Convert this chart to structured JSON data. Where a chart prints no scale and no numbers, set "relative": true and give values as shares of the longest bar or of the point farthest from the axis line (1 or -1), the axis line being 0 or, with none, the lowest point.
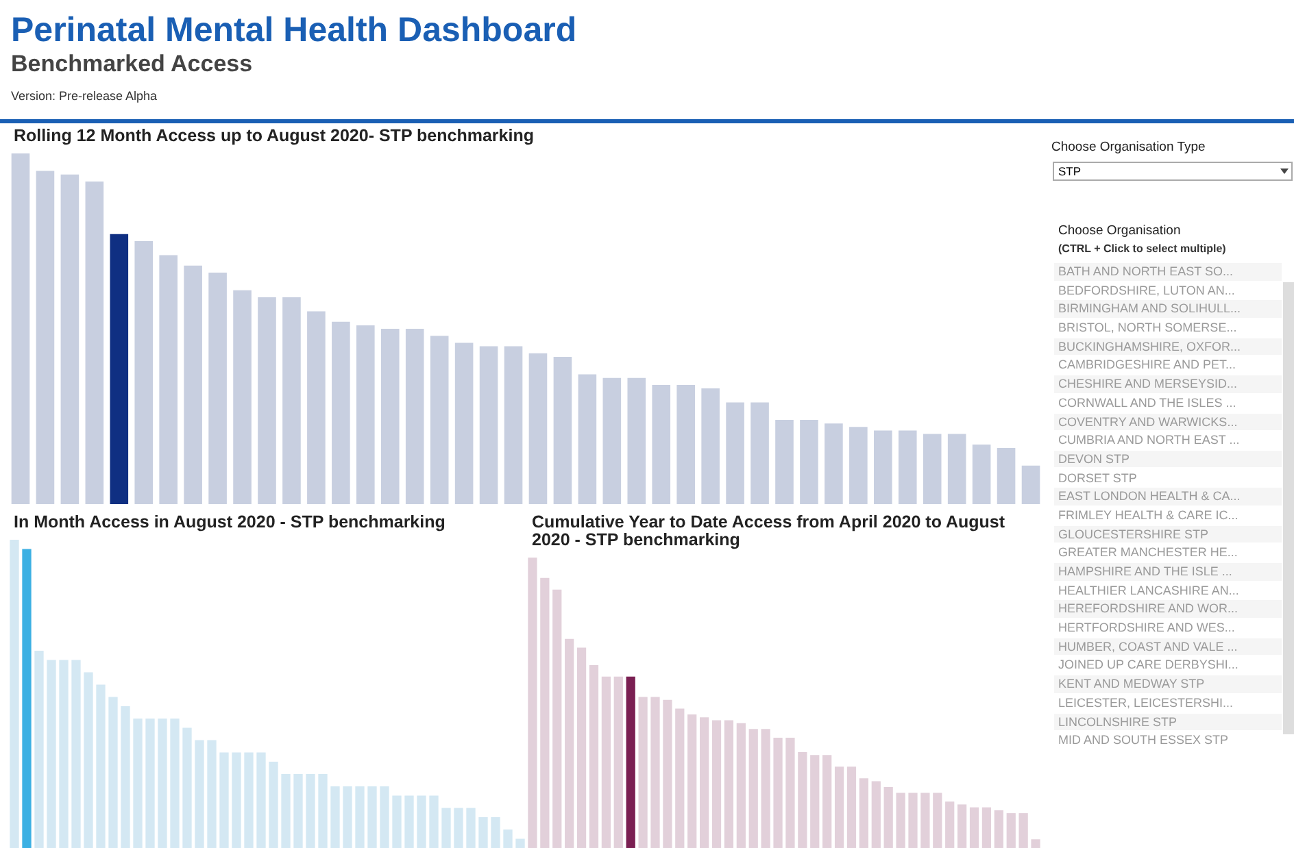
{
  "chart_data": [
    {
      "type": "other",
      "title": "Perinatal Mental Health Dashboard",
      "subtitle": "Benchmarked Access",
      "annotations": [
        "Version: Pre-release Alpha"
      ]
    },
    {
      "type": "bar",
      "title": "Rolling 12 Month Access up to August 2020- STP benchmarking",
      "relative": true,
      "categories": [
        null,
        null,
        null,
        null,
        null,
        null,
        null,
        null,
        null,
        null,
        null,
        null,
        null,
        null,
        null,
        null,
        null,
        null,
        null,
        null,
        null,
        null,
        null,
        null,
        null,
        null,
        null,
        null,
        null,
        null,
        null,
        null,
        null,
        null,
        null,
        null,
        null,
        null,
        null,
        null,
        null,
        null
      ],
      "values": [
        1,
        0.95,
        0.94,
        0.92,
        0.77,
        0.75,
        0.71,
        0.68,
        0.66,
        0.61,
        0.59,
        0.59,
        0.55,
        0.52,
        0.51,
        0.5,
        0.5,
        0.48,
        0.46,
        0.45,
        0.45,
        0.43,
        0.42,
        0.37,
        0.36,
        0.36,
        0.34,
        0.34,
        0.33,
        0.29,
        0.29,
        0.24,
        0.24,
        0.23,
        0.22,
        0.21,
        0.21,
        0.2,
        0.2,
        0.17,
        0.16,
        0.11
      ],
      "colors": [
        "#c8cfe0",
        "#c8cfe0",
        "#c8cfe0",
        "#c8cfe0",
        "#0f2f82",
        "#c8cfe0",
        "#c8cfe0",
        "#c8cfe0",
        "#c8cfe0",
        "#c8cfe0",
        "#c8cfe0",
        "#c8cfe0",
        "#c8cfe0",
        "#c8cfe0",
        "#c8cfe0",
        "#c8cfe0",
        "#c8cfe0",
        "#c8cfe0",
        "#c8cfe0",
        "#c8cfe0",
        "#c8cfe0",
        "#c8cfe0",
        "#c8cfe0",
        "#c8cfe0",
        "#c8cfe0",
        "#c8cfe0",
        "#c8cfe0",
        "#c8cfe0",
        "#c8cfe0",
        "#c8cfe0",
        "#c8cfe0",
        "#c8cfe0",
        "#c8cfe0",
        "#c8cfe0",
        "#c8cfe0",
        "#c8cfe0",
        "#c8cfe0",
        "#c8cfe0",
        "#c8cfe0",
        "#c8cfe0",
        "#c8cfe0",
        "#c8cfe0"
      ]
    },
    {
      "type": "other",
      "annotations": [
        "Choose Organisation Type",
        "STP",
        "Choose Organisation",
        "(CTRL + Click to select multiple)",
        "BATH AND NORTH EAST SO...",
        "BEDFORDSHIRE, LUTON AN...",
        "BIRMINGHAM AND SOLIHULL...",
        "BRISTOL, NORTH SOMERSE...",
        "BUCKINGHAMSHIRE, OXFOR...",
        "CAMBRIDGESHIRE AND PET...",
        "CHESHIRE AND MERSEYSID...",
        "CORNWALL AND THE ISLES ...",
        "COVENTRY AND WARWICKS...",
        "CUMBRIA AND NORTH EAST ...",
        "DEVON STP",
        "DORSET STP",
        "EAST LONDON HEALTH & CA...",
        "FRIMLEY HEALTH & CARE IC...",
        "GLOUCESTERSHIRE STP",
        "GREATER MANCHESTER HE...",
        "HAMPSHIRE AND THE ISLE ...",
        "HEALTHIER LANCASHIRE AN...",
        "HEREFORDSHIRE AND WOR...",
        "HERTFORDSHIRE AND WES...",
        "HUMBER, COAST AND VALE ...",
        "JOINED UP CARE DERBYSHI...",
        "KENT AND MEDWAY STP",
        "LEICESTER, LEICESTERSHI...",
        "LINCOLNSHIRE STP",
        "MID AND SOUTH ESSEX STP"
      ]
    },
    {
      "type": "bar",
      "title": "In Month Access in August 2020 - STP benchmarking",
      "relative": true,
      "categories": [
        null,
        null,
        null,
        null,
        null,
        null,
        null,
        null,
        null,
        null,
        null,
        null,
        null,
        null,
        null,
        null,
        null,
        null,
        null,
        null,
        null,
        null,
        null,
        null,
        null,
        null,
        null,
        null,
        null,
        null,
        null,
        null,
        null,
        null,
        null,
        null,
        null,
        null,
        null,
        null,
        null,
        null
      ],
      "values": [
        1,
        0.97,
        0.64,
        0.61,
        0.61,
        0.61,
        0.57,
        0.53,
        0.49,
        0.46,
        0.42,
        0.42,
        0.42,
        0.42,
        0.39,
        0.35,
        0.35,
        0.31,
        0.31,
        0.31,
        0.31,
        0.28,
        0.24,
        0.24,
        0.24,
        0.24,
        0.2,
        0.2,
        0.2,
        0.2,
        0.2,
        0.17,
        0.17,
        0.17,
        0.17,
        0.13,
        0.13,
        0.13,
        0.1,
        0.1,
        0.06,
        0.03
      ],
      "colors": [
        "#d4e8f3",
        "#3cb0e3",
        "#d4e8f3",
        "#d4e8f3",
        "#d4e8f3",
        "#d4e8f3",
        "#d4e8f3",
        "#d4e8f3",
        "#d4e8f3",
        "#d4e8f3",
        "#d4e8f3",
        "#d4e8f3",
        "#d4e8f3",
        "#d4e8f3",
        "#d4e8f3",
        "#d4e8f3",
        "#d4e8f3",
        "#d4e8f3",
        "#d4e8f3",
        "#d4e8f3",
        "#d4e8f3",
        "#d4e8f3",
        "#d4e8f3",
        "#d4e8f3",
        "#d4e8f3",
        "#d4e8f3",
        "#d4e8f3",
        "#d4e8f3",
        "#d4e8f3",
        "#d4e8f3",
        "#d4e8f3",
        "#d4e8f3",
        "#d4e8f3",
        "#d4e8f3",
        "#d4e8f3",
        "#d4e8f3",
        "#d4e8f3",
        "#d4e8f3",
        "#d4e8f3",
        "#d4e8f3",
        "#d4e8f3",
        "#d4e8f3"
      ]
    },
    {
      "type": "bar",
      "title": "Cumulative Year to Date Access from April 2020 to August 2020 - STP benchmarking",
      "relative": true,
      "categories": [
        null,
        null,
        null,
        null,
        null,
        null,
        null,
        null,
        null,
        null,
        null,
        null,
        null,
        null,
        null,
        null,
        null,
        null,
        null,
        null,
        null,
        null,
        null,
        null,
        null,
        null,
        null,
        null,
        null,
        null,
        null,
        null,
        null,
        null,
        null,
        null,
        null,
        null,
        null,
        null,
        null,
        null
      ],
      "values": [
        1,
        0.93,
        0.89,
        0.72,
        0.69,
        0.63,
        0.59,
        0.59,
        0.59,
        0.52,
        0.52,
        0.51,
        0.48,
        0.46,
        0.45,
        0.44,
        0.44,
        0.43,
        0.41,
        0.41,
        0.38,
        0.38,
        0.33,
        0.32,
        0.32,
        0.28,
        0.28,
        0.24,
        0.23,
        0.21,
        0.19,
        0.19,
        0.19,
        0.19,
        0.16,
        0.15,
        0.14,
        0.14,
        0.13,
        0.12,
        0.12,
        0.03
      ],
      "colors": [
        "#e2d0da",
        "#e2d0da",
        "#e2d0da",
        "#e2d0da",
        "#e2d0da",
        "#e2d0da",
        "#e2d0da",
        "#e2d0da",
        "#7a1f52",
        "#e2d0da",
        "#e2d0da",
        "#e2d0da",
        "#e2d0da",
        "#e2d0da",
        "#e2d0da",
        "#e2d0da",
        "#e2d0da",
        "#e2d0da",
        "#e2d0da",
        "#e2d0da",
        "#e2d0da",
        "#e2d0da",
        "#e2d0da",
        "#e2d0da",
        "#e2d0da",
        "#e2d0da",
        "#e2d0da",
        "#e2d0da",
        "#e2d0da",
        "#e2d0da",
        "#e2d0da",
        "#e2d0da",
        "#e2d0da",
        "#e2d0da",
        "#e2d0da",
        "#e2d0da",
        "#e2d0da",
        "#e2d0da",
        "#e2d0da",
        "#e2d0da",
        "#e2d0da",
        "#e2d0da"
      ]
    }
  ]
}
